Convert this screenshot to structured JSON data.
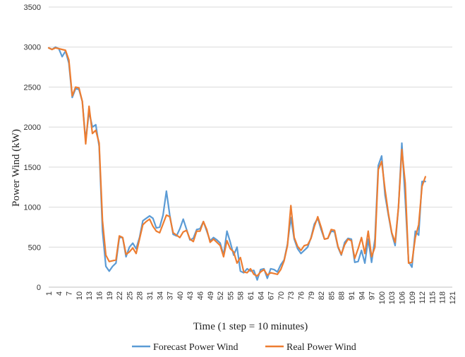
{
  "chart_data": {
    "type": "line",
    "xlabel": "Time (1 step = 10 minutes)",
    "ylabel": "Power Wind (kW)",
    "ylim": [
      0,
      3500
    ],
    "yticks": [
      "0",
      "500",
      "1000",
      "1500",
      "2000",
      "2500",
      "3000",
      "3500"
    ],
    "xticks": [
      "1",
      "4",
      "7",
      "10",
      "13",
      "16",
      "19",
      "22",
      "25",
      "28",
      "31",
      "34",
      "37",
      "40",
      "43",
      "46",
      "49",
      "52",
      "55",
      "58",
      "61",
      "64",
      "67",
      "70",
      "73",
      "76",
      "79",
      "82",
      "85",
      "88",
      "91",
      "94",
      "97",
      "100",
      "103",
      "106",
      "109",
      "112",
      "115",
      "118",
      "121"
    ],
    "xlim": [
      1,
      121
    ],
    "grid": "horizontal",
    "legend_position": "bottom",
    "series": [
      {
        "name": "Forecast Power Wind",
        "color": "#5b9bd5",
        "values": [
          2990,
          2970,
          3000,
          2980,
          2880,
          2950,
          2800,
          2370,
          2480,
          2470,
          2320,
          1830,
          2190,
          2000,
          2030,
          1760,
          700,
          260,
          200,
          260,
          300,
          620,
          620,
          380,
          500,
          550,
          480,
          620,
          830,
          860,
          890,
          860,
          740,
          750,
          900,
          1200,
          900,
          660,
          640,
          730,
          850,
          720,
          590,
          610,
          720,
          730,
          820,
          700,
          580,
          620,
          590,
          550,
          400,
          700,
          560,
          400,
          500,
          200,
          180,
          230,
          200,
          210,
          90,
          220,
          230,
          110,
          230,
          220,
          190,
          280,
          340,
          540,
          870,
          600,
          480,
          420,
          460,
          500,
          620,
          790,
          860,
          720,
          600,
          610,
          700,
          690,
          500,
          400,
          560,
          610,
          600,
          310,
          320,
          460,
          300,
          600,
          310,
          600,
          1520,
          1640,
          1150,
          900,
          670,
          520,
          1000,
          1800,
          1100,
          320,
          250,
          700,
          650,
          1320,
          1320
        ]
      },
      {
        "name": "Real Power Wind",
        "color": "#ed7d31",
        "values": [
          2990,
          2970,
          2990,
          2980,
          2970,
          2960,
          2840,
          2390,
          2500,
          2490,
          2320,
          1790,
          2260,
          1920,
          1960,
          1800,
          830,
          400,
          320,
          330,
          340,
          640,
          620,
          410,
          440,
          490,
          420,
          600,
          780,
          820,
          850,
          760,
          700,
          680,
          790,
          900,
          880,
          680,
          650,
          620,
          690,
          710,
          600,
          570,
          700,
          700,
          820,
          720,
          560,
          600,
          560,
          520,
          380,
          580,
          480,
          440,
          300,
          370,
          190,
          180,
          230,
          160,
          140,
          190,
          220,
          150,
          180,
          170,
          160,
          220,
          330,
          520,
          1020,
          620,
          510,
          460,
          520,
          530,
          610,
          760,
          880,
          750,
          600,
          610,
          720,
          710,
          510,
          410,
          530,
          600,
          580,
          360,
          480,
          620,
          420,
          700,
          380,
          500,
          1470,
          1570,
          1220,
          920,
          680,
          560,
          1000,
          1720,
          1300,
          300,
          310,
          620,
          780,
          1260,
          1380
        ]
      }
    ]
  }
}
